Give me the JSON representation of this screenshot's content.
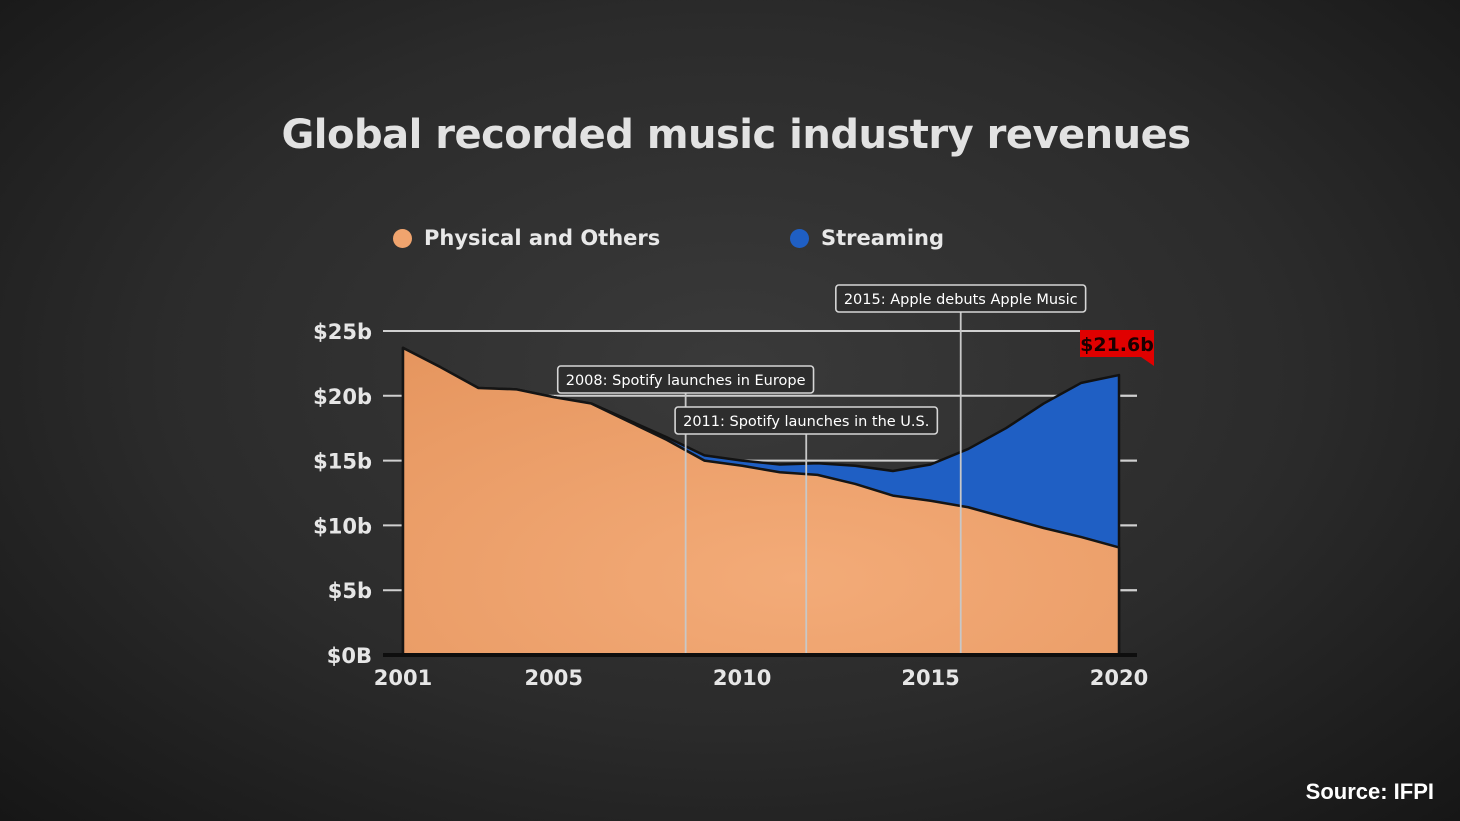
{
  "chart_data": {
    "type": "area",
    "title": "Global recorded music industry revenues",
    "source": "Source: IFPI",
    "y_ticks": [
      "$0B",
      "$5b",
      "$10b",
      "$15b",
      "$20b",
      "$25b"
    ],
    "y_tick_values": [
      0,
      5,
      10,
      15,
      20,
      25
    ],
    "x_ticks": [
      "2001",
      "2005",
      "2010",
      "2015",
      "2020"
    ],
    "x_tick_values": [
      2001,
      2005,
      2010,
      2015,
      2020
    ],
    "xlim": [
      2001,
      2020
    ],
    "ylim": [
      0,
      25
    ],
    "grid": "horizontal",
    "legend_position": "top",
    "x": [
      2001,
      2002,
      2003,
      2004,
      2005,
      2006,
      2007,
      2008,
      2009,
      2010,
      2011,
      2012,
      2013,
      2014,
      2015,
      2016,
      2017,
      2018,
      2019,
      2020
    ],
    "series": [
      {
        "name": "Physical and Others",
        "color": "#f0a46e",
        "values": [
          23.7,
          22.2,
          20.6,
          20.5,
          19.9,
          19.4,
          18.0,
          16.6,
          15.0,
          14.6,
          14.1,
          13.9,
          13.2,
          12.3,
          11.9,
          11.4,
          10.6,
          9.8,
          9.1,
          8.3
        ]
      },
      {
        "name": "Streaming",
        "color": "#1f5fc4",
        "values": [
          0.0,
          0.0,
          0.0,
          0.0,
          0.0,
          0.0,
          0.1,
          0.2,
          0.4,
          0.4,
          0.6,
          0.9,
          1.4,
          1.9,
          2.8,
          4.5,
          6.9,
          9.6,
          11.9,
          13.3
        ]
      }
    ],
    "annotations": [
      {
        "text": "2008: Spotify launches in Europe",
        "x": 2008.5
      },
      {
        "text": "2011: Spotify launches in the U.S.",
        "x": 2011.7
      },
      {
        "text": "2015: Apple debuts Apple Music",
        "x": 2015.8
      }
    ],
    "total_label": {
      "text": "$21.6b",
      "x": 2020,
      "value": 21.6,
      "color": "#e00000"
    }
  }
}
